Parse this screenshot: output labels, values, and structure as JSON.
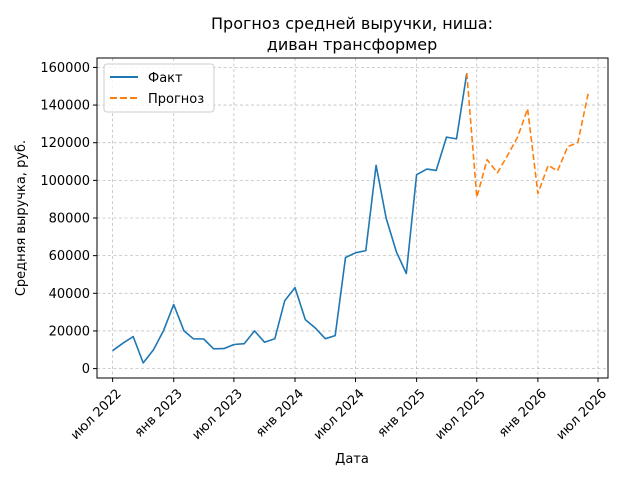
{
  "chart_data": {
    "type": "line",
    "title_line1": "Прогноз средней выручки, ниша:",
    "title_line2": "диван трансформер",
    "xlabel": "Дата",
    "ylabel": "Средняя выручка, руб.",
    "xlim": [
      "2022-05-15",
      "2026-07-31"
    ],
    "ylim": [
      -5000,
      165000
    ],
    "y_ticks": [
      0,
      20000,
      40000,
      60000,
      80000,
      100000,
      120000,
      140000,
      160000
    ],
    "y_tick_labels": [
      "0",
      "20000",
      "40000",
      "60000",
      "80000",
      "100000",
      "120000",
      "140000",
      "160000"
    ],
    "x_ticks": [
      "2022-07-01",
      "2023-01-01",
      "2023-07-01",
      "2024-01-01",
      "2024-07-01",
      "2025-01-01",
      "2025-07-01",
      "2026-01-01",
      "2026-07-01"
    ],
    "x_tick_labels": [
      "июл 2022",
      "янв 2023",
      "июл 2023",
      "янв 2024",
      "июл 2024",
      "янв 2025",
      "июл 2025",
      "янв 2026",
      "июл 2026"
    ],
    "grid": true,
    "legend_position": "top-left",
    "series": [
      {
        "name": "Факт",
        "color": "#1f77b4",
        "style": "solid",
        "points": [
          [
            "2022-07-01",
            9500
          ],
          [
            "2022-08-01",
            13500
          ],
          [
            "2022-09-01",
            17000
          ],
          [
            "2022-10-01",
            3000
          ],
          [
            "2022-11-01",
            10000
          ],
          [
            "2022-12-01",
            20000
          ],
          [
            "2023-01-01",
            34000
          ],
          [
            "2023-02-01",
            20000
          ],
          [
            "2023-03-01",
            15800
          ],
          [
            "2023-04-01",
            15700
          ],
          [
            "2023-05-01",
            10500
          ],
          [
            "2023-06-01",
            10600
          ],
          [
            "2023-07-01",
            12800
          ],
          [
            "2023-08-01",
            13200
          ],
          [
            "2023-09-01",
            20000
          ],
          [
            "2023-10-01",
            14000
          ],
          [
            "2023-11-01",
            15800
          ],
          [
            "2023-12-01",
            36000
          ],
          [
            "2024-01-01",
            43000
          ],
          [
            "2024-02-01",
            26000
          ],
          [
            "2024-03-01",
            21700
          ],
          [
            "2024-04-01",
            15900
          ],
          [
            "2024-05-01",
            17500
          ],
          [
            "2024-06-01",
            59000
          ],
          [
            "2024-07-01",
            61500
          ],
          [
            "2024-08-01",
            62700
          ],
          [
            "2024-09-01",
            108000
          ],
          [
            "2024-10-01",
            80000
          ],
          [
            "2024-11-01",
            62000
          ],
          [
            "2024-12-01",
            50500
          ],
          [
            "2025-01-01",
            103000
          ],
          [
            "2025-02-01",
            106000
          ],
          [
            "2025-03-01",
            105300
          ],
          [
            "2025-04-01",
            123000
          ],
          [
            "2025-05-01",
            122000
          ],
          [
            "2025-06-01",
            157000
          ]
        ]
      },
      {
        "name": "Прогноз",
        "color": "#ff7f0e",
        "style": "dashed",
        "points": [
          [
            "2025-06-01",
            157000
          ],
          [
            "2025-07-01",
            91000
          ],
          [
            "2025-08-01",
            111000
          ],
          [
            "2025-09-01",
            104000
          ],
          [
            "2025-10-01",
            113000
          ],
          [
            "2025-11-01",
            123000
          ],
          [
            "2025-12-01",
            138000
          ],
          [
            "2026-01-01",
            93000
          ],
          [
            "2026-02-01",
            108000
          ],
          [
            "2026-03-01",
            105000
          ],
          [
            "2026-04-01",
            118000
          ],
          [
            "2026-05-01",
            120000
          ],
          [
            "2026-06-01",
            146000
          ]
        ]
      }
    ]
  }
}
